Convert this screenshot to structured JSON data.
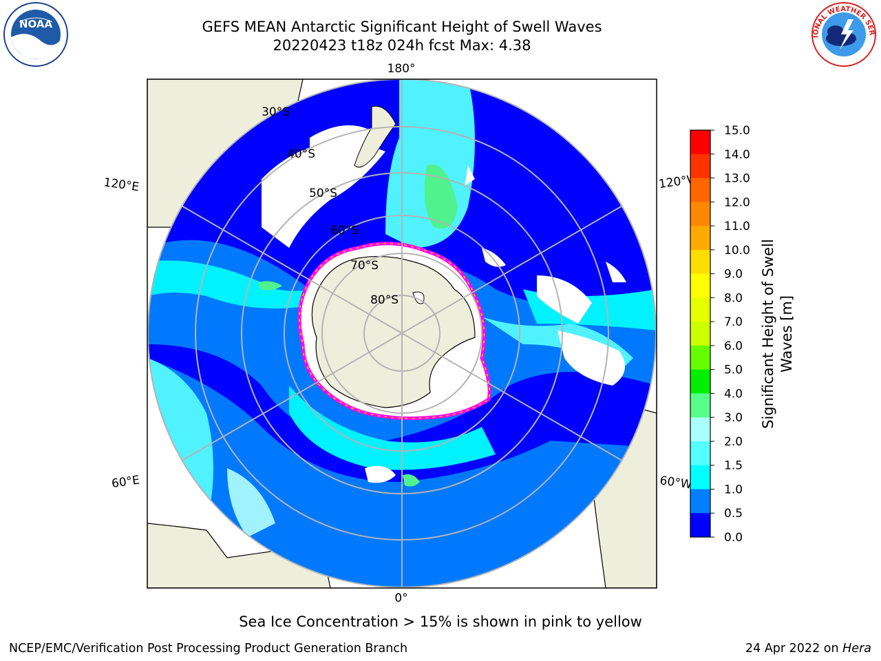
{
  "title": {
    "line1": "GEFS MEAN Antarctic Significant Height of Swell Waves",
    "line2": "20220423 t18z 024h fcst   Max: 4.38"
  },
  "logos": {
    "left": {
      "icon": "noaa-logo",
      "text": "NOAA"
    },
    "right": {
      "icon": "nws-logo",
      "text": "NATIONAL WEATHER SERVICE"
    }
  },
  "map": {
    "projection": "south-polar-stereographic",
    "lon_labels": {
      "top": "180°",
      "bottom": "0°",
      "left_upper": "120°E",
      "left_lower": "60°E",
      "right_upper": "120°W",
      "right_lower": "60°W"
    },
    "lat_labels": [
      "30°S",
      "40°S",
      "50°S",
      "60°S",
      "70°S",
      "80°S"
    ],
    "colors": {
      "land": "#eeeedc",
      "no_data": "#ffffff",
      "grid": "#b4b4b4",
      "sea_ice": [
        "#ff00ff",
        "#ffa500",
        "#ffff00"
      ]
    }
  },
  "colorbar": {
    "label": "Significant Height of Swell Waves [m]",
    "label_line1": "Significant Height of Swell",
    "label_line2": "Waves [m]",
    "ticks": [
      "15.0",
      "14.0",
      "13.0",
      "12.0",
      "11.0",
      "10.0",
      "9.0",
      "8.0",
      "7.0",
      "6.0",
      "5.0",
      "4.0",
      "3.0",
      "2.0",
      "1.5",
      "1.0",
      "0.5",
      "0.0"
    ],
    "colors": [
      "#ff0000",
      "#ff3300",
      "#ff6600",
      "#ff8800",
      "#ffaa00",
      "#ffdd00",
      "#ffff00",
      "#e6ff00",
      "#ccff00",
      "#66ff00",
      "#00ee00",
      "#55ff88",
      "#aaffff",
      "#55ffff",
      "#00ffff",
      "#0080ff",
      "#0000ff"
    ]
  },
  "footnote": "Sea Ice Concentration > 15% is shown in pink to yellow",
  "credit": "NCEP/EMC/Verification Post Processing Product Generation Branch",
  "datestamp": {
    "date": "24 Apr 2022 on ",
    "machine": "Hera"
  }
}
